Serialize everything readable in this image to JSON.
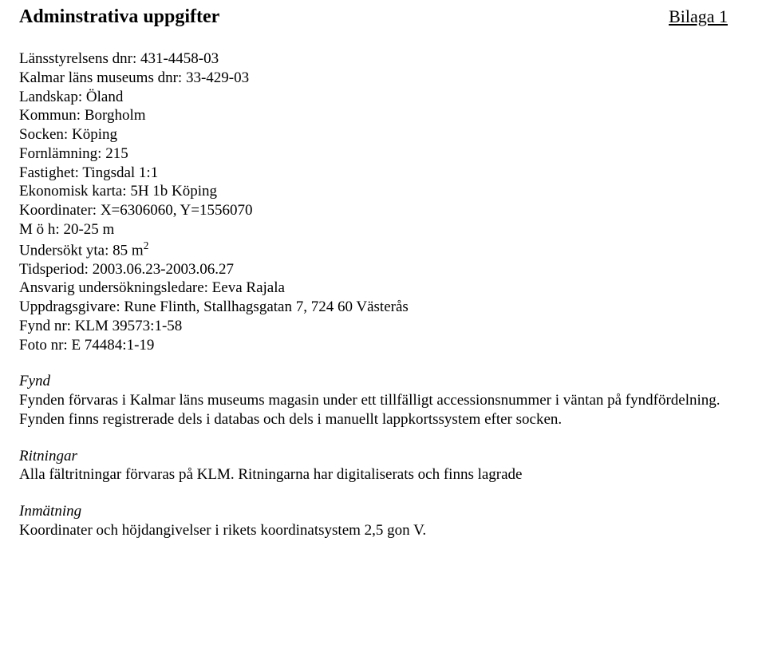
{
  "header": {
    "title": "Adminstrativa uppgifter",
    "appendix": "Bilaga 1"
  },
  "fields": {
    "lansstyrelsens_dnr_label": "Länsstyrelsens dnr: ",
    "lansstyrelsens_dnr_value": "431-4458-03",
    "kalmar_dnr_label": "Kalmar läns museums dnr: ",
    "kalmar_dnr_value": "33-429-03",
    "landskap_label": "Landskap: ",
    "landskap_value": "Öland",
    "kommun_label": "Kommun: ",
    "kommun_value": "Borgholm",
    "socken_label": "Socken: ",
    "socken_value": "Köping",
    "fornlamning_label": "Fornlämning: ",
    "fornlamning_value": "215",
    "fastighet_label": "Fastighet: ",
    "fastighet_value": "Tingsdal 1:1",
    "ekonomisk_karta_label": "Ekonomisk karta: ",
    "ekonomisk_karta_value": "5H 1b Köping",
    "koordinater_label": "Koordinater: ",
    "koordinater_value": "X=6306060, Y=1556070",
    "moh_label": "M ö h: ",
    "moh_value": "20-25 m",
    "undersokt_yta_label": "Undersökt yta: ",
    "undersokt_yta_value_pre": "85 m",
    "tidsperiod_label": "Tidsperiod: ",
    "tidsperiod_value": "2003.06.23-2003.06.27",
    "ansvarig_label": "Ansvarig undersökningsledare: ",
    "ansvarig_value": "Eeva Rajala",
    "uppdragsgivare_label": "Uppdragsgivare: ",
    "uppdragsgivare_value": "Rune Flinth,  Stallhagsgatan 7, 724 60 Västerås",
    "fynd_nr_label": "Fynd nr: ",
    "fynd_nr_value": "KLM 39573:1-58",
    "foto_nr_label": "Foto nr: ",
    "foto_nr_value": "E 74484:1-19"
  },
  "sections": {
    "fynd_title": "Fynd",
    "fynd_text": "Fynden förvaras i Kalmar läns museums magasin under ett tillfälligt accessionsnummer i väntan på fyndfördelning. Fynden finns registrerade dels i databas och dels i manuellt lappkortssystem efter socken.",
    "ritningar_title": "Ritningar",
    "ritningar_text": "Alla fältritningar förvaras på KLM. Ritningarna har digitaliserats och finns lagrade",
    "inmatning_title": "Inmätning",
    "inmatning_text": "Koordinater och höjdangivelser i rikets koordinatsystem 2,5 gon V."
  }
}
